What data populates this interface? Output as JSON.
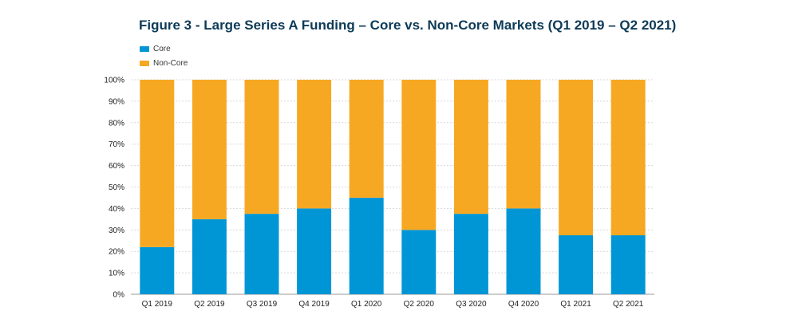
{
  "chart_data": {
    "type": "bar",
    "stacked": true,
    "title": "Figure 3 - Large Series A Funding – Core vs. Non-Core Markets (Q1 2019 – Q2 2021)",
    "categories": [
      "Q1 2019",
      "Q2 2019",
      "Q3 2019",
      "Q4 2019",
      "Q1 2020",
      "Q2 2020",
      "Q3 2020",
      "Q4 2020",
      "Q1 2021",
      "Q2 2021"
    ],
    "series": [
      {
        "name": "Core",
        "color": "#0096d6",
        "values": [
          22,
          35,
          37.5,
          40,
          45,
          30,
          37.5,
          40,
          27.5,
          27.5
        ]
      },
      {
        "name": "Non-Core",
        "color": "#f7a823",
        "values": [
          78,
          65,
          62.5,
          60,
          55,
          70,
          62.5,
          60,
          72.5,
          72.5
        ]
      }
    ],
    "yticks": [
      "0%",
      "10%",
      "20%",
      "30%",
      "40%",
      "50%",
      "60%",
      "70%",
      "80%",
      "90%",
      "100%"
    ],
    "ylim": [
      0,
      100
    ],
    "grid": true,
    "legend_position": "top-left"
  }
}
